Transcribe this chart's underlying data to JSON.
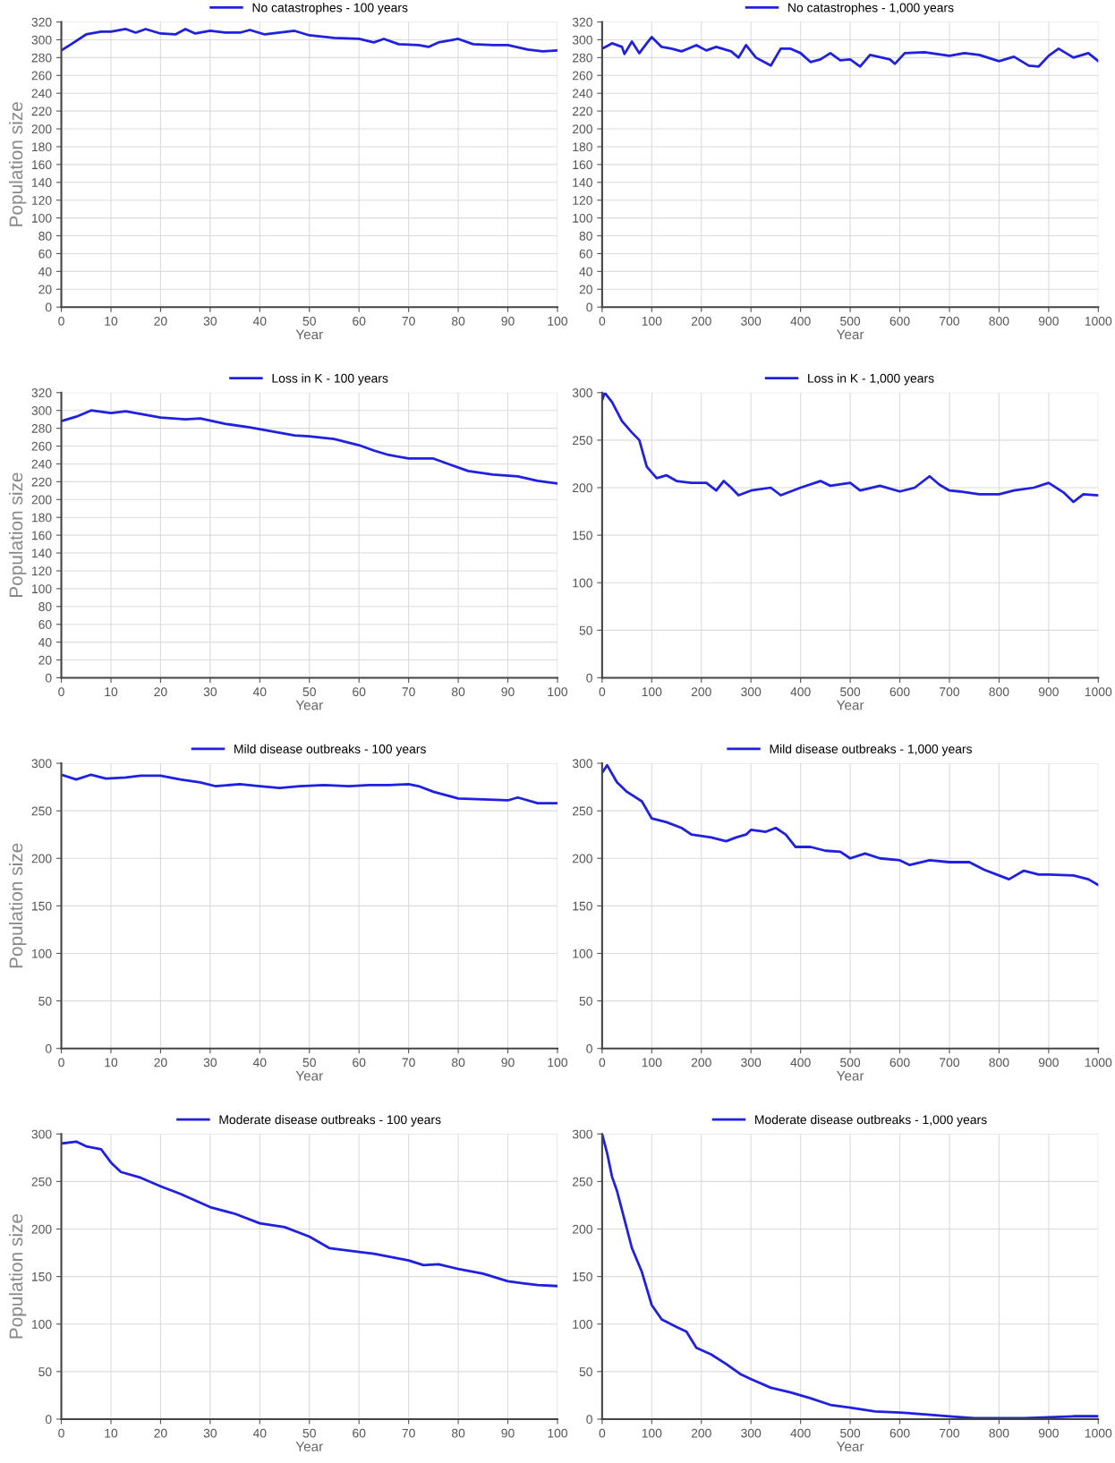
{
  "chart_data": [
    {
      "type": "line",
      "xlabel": "Year",
      "ylabel": "Population size",
      "legend": "top",
      "grid": true,
      "xlim": [
        0,
        100
      ],
      "xticks": [
        0,
        10,
        20,
        30,
        40,
        50,
        60,
        70,
        80,
        90,
        100
      ],
      "ylim": [
        0,
        320
      ],
      "yticks": [
        0,
        20,
        40,
        60,
        80,
        100,
        120,
        140,
        160,
        180,
        200,
        220,
        240,
        260,
        280,
        300,
        320
      ],
      "series": [
        {
          "name": "No catastrophes - 100 years",
          "color": "#2020e0",
          "x": [
            0,
            2,
            5,
            8,
            10,
            13,
            15,
            17,
            20,
            23,
            25,
            27,
            30,
            33,
            36,
            38,
            41,
            44,
            47,
            50,
            55,
            60,
            63,
            65,
            68,
            72,
            74,
            76,
            80,
            83,
            87,
            90,
            94,
            97,
            100
          ],
          "values": [
            288,
            295,
            306,
            309,
            309,
            312,
            308,
            312,
            307,
            306,
            312,
            307,
            310,
            308,
            308,
            311,
            306,
            308,
            310,
            305,
            302,
            301,
            297,
            301,
            295,
            294,
            292,
            297,
            301,
            295,
            294,
            294,
            289,
            287,
            288
          ]
        }
      ]
    },
    {
      "type": "line",
      "xlabel": "Year",
      "legend": "top",
      "grid": true,
      "xlim": [
        0,
        1000
      ],
      "xticks": [
        0,
        100,
        200,
        300,
        400,
        500,
        600,
        700,
        800,
        900,
        1000
      ],
      "ylim": [
        0,
        320
      ],
      "yticks": [
        0,
        20,
        40,
        60,
        80,
        100,
        120,
        140,
        160,
        180,
        200,
        220,
        240,
        260,
        280,
        300,
        320
      ],
      "series": [
        {
          "name": "No catastrophes - 1,000 years",
          "color": "#2020e0",
          "x": [
            0,
            20,
            40,
            45,
            60,
            75,
            90,
            100,
            120,
            140,
            160,
            190,
            210,
            230,
            260,
            275,
            290,
            310,
            340,
            360,
            380,
            400,
            420,
            440,
            460,
            480,
            500,
            520,
            540,
            580,
            590,
            610,
            650,
            700,
            730,
            760,
            800,
            830,
            860,
            880,
            900,
            920,
            950,
            980,
            1000
          ],
          "values": [
            290,
            296,
            292,
            284,
            298,
            285,
            296,
            303,
            292,
            290,
            287,
            294,
            288,
            292,
            287,
            280,
            294,
            280,
            271,
            290,
            290,
            285,
            275,
            278,
            285,
            277,
            278,
            270,
            283,
            278,
            273,
            285,
            286,
            282,
            285,
            283,
            276,
            281,
            271,
            270,
            282,
            290,
            280,
            285,
            276
          ]
        }
      ]
    },
    {
      "type": "line",
      "xlabel": "Year",
      "ylabel": "Population size",
      "legend": "top",
      "grid": true,
      "xlim": [
        0,
        100
      ],
      "xticks": [
        0,
        10,
        20,
        30,
        40,
        50,
        60,
        70,
        80,
        90,
        100
      ],
      "ylim": [
        0,
        320
      ],
      "yticks": [
        0,
        20,
        40,
        60,
        80,
        100,
        120,
        140,
        160,
        180,
        200,
        220,
        240,
        260,
        280,
        300,
        320
      ],
      "series": [
        {
          "name": "Loss in K - 100 years",
          "color": "#2020e0",
          "x": [
            0,
            3,
            6,
            10,
            13,
            17,
            20,
            25,
            28,
            33,
            38,
            42,
            47,
            50,
            55,
            60,
            63,
            66,
            70,
            75,
            78,
            82,
            87,
            92,
            96,
            100
          ],
          "values": [
            288,
            293,
            300,
            297,
            299,
            295,
            292,
            290,
            291,
            285,
            281,
            277,
            272,
            271,
            268,
            261,
            255,
            250,
            246,
            246,
            240,
            232,
            228,
            226,
            221,
            218
          ]
        }
      ]
    },
    {
      "type": "line",
      "xlabel": "Year",
      "legend": "top",
      "grid": true,
      "xlim": [
        0,
        1000
      ],
      "xticks": [
        0,
        100,
        200,
        300,
        400,
        500,
        600,
        700,
        800,
        900,
        1000
      ],
      "ylim": [
        0,
        300
      ],
      "yticks": [
        0,
        50,
        100,
        150,
        200,
        250,
        300
      ],
      "series": [
        {
          "name": "Loss in K - 1,000 years",
          "color": "#2020e0",
          "x": [
            0,
            5,
            20,
            40,
            60,
            75,
            90,
            110,
            130,
            150,
            180,
            210,
            230,
            245,
            260,
            275,
            300,
            340,
            360,
            400,
            440,
            460,
            500,
            520,
            560,
            600,
            630,
            660,
            680,
            700,
            720,
            760,
            800,
            830,
            870,
            900,
            930,
            950,
            970,
            1000
          ],
          "values": [
            292,
            300,
            290,
            270,
            258,
            250,
            222,
            210,
            213,
            207,
            205,
            205,
            197,
            207,
            200,
            192,
            197,
            200,
            192,
            200,
            207,
            202,
            205,
            197,
            202,
            196,
            200,
            212,
            203,
            197,
            196,
            193,
            193,
            197,
            200,
            205,
            195,
            185,
            193,
            192
          ]
        }
      ]
    },
    {
      "type": "line",
      "xlabel": "Year",
      "ylabel": "Population size",
      "legend": "top",
      "grid": true,
      "xlim": [
        0,
        100
      ],
      "xticks": [
        0,
        10,
        20,
        30,
        40,
        50,
        60,
        70,
        80,
        90,
        100
      ],
      "ylim": [
        0,
        300
      ],
      "yticks": [
        0,
        50,
        100,
        150,
        200,
        250,
        300
      ],
      "series": [
        {
          "name": "Mild disease outbreaks - 100 years",
          "color": "#2020e0",
          "x": [
            0,
            3,
            6,
            9,
            13,
            16,
            20,
            24,
            28,
            31,
            36,
            40,
            44,
            48,
            53,
            58,
            62,
            66,
            70,
            72,
            75,
            80,
            85,
            90,
            92,
            96,
            100
          ],
          "values": [
            288,
            283,
            288,
            284,
            285,
            287,
            287,
            283,
            280,
            276,
            278,
            276,
            274,
            276,
            277,
            276,
            277,
            277,
            278,
            276,
            270,
            263,
            262,
            261,
            264,
            258,
            258
          ]
        }
      ]
    },
    {
      "type": "line",
      "xlabel": "Year",
      "legend": "top",
      "grid": true,
      "xlim": [
        0,
        1000
      ],
      "xticks": [
        0,
        100,
        200,
        300,
        400,
        500,
        600,
        700,
        800,
        900,
        1000
      ],
      "ylim": [
        0,
        300
      ],
      "yticks": [
        0,
        50,
        100,
        150,
        200,
        250,
        300
      ],
      "series": [
        {
          "name": "Mild disease outbreaks - 1,000 years",
          "color": "#2020e0",
          "x": [
            0,
            10,
            30,
            50,
            80,
            100,
            130,
            160,
            180,
            220,
            250,
            270,
            290,
            300,
            330,
            350,
            370,
            390,
            420,
            450,
            480,
            500,
            530,
            560,
            600,
            620,
            660,
            700,
            740,
            770,
            800,
            820,
            850,
            880,
            900,
            950,
            980,
            1000
          ],
          "values": [
            290,
            298,
            280,
            270,
            260,
            242,
            238,
            232,
            225,
            222,
            218,
            222,
            225,
            230,
            228,
            232,
            225,
            212,
            212,
            208,
            207,
            200,
            205,
            200,
            198,
            193,
            198,
            196,
            196,
            188,
            182,
            178,
            187,
            183,
            183,
            182,
            178,
            172
          ]
        }
      ]
    },
    {
      "type": "line",
      "xlabel": "Year",
      "ylabel": "Population size",
      "legend": "top",
      "grid": true,
      "xlim": [
        0,
        100
      ],
      "xticks": [
        0,
        10,
        20,
        30,
        40,
        50,
        60,
        70,
        80,
        90,
        100
      ],
      "ylim": [
        0,
        300
      ],
      "yticks": [
        0,
        50,
        100,
        150,
        200,
        250,
        300
      ],
      "series": [
        {
          "name": "Moderate disease outbreaks - 100 years",
          "color": "#2020e0",
          "x": [
            0,
            3,
            5,
            8,
            10,
            12,
            16,
            20,
            24,
            30,
            35,
            40,
            45,
            50,
            54,
            60,
            63,
            70,
            73,
            76,
            80,
            85,
            90,
            93,
            96,
            100
          ],
          "values": [
            290,
            292,
            287,
            284,
            270,
            260,
            254,
            245,
            237,
            223,
            216,
            206,
            202,
            192,
            180,
            176,
            174,
            167,
            162,
            163,
            158,
            153,
            145,
            143,
            141,
            140
          ]
        }
      ]
    },
    {
      "type": "line",
      "xlabel": "Year",
      "legend": "top",
      "grid": true,
      "xlim": [
        0,
        1000
      ],
      "xticks": [
        0,
        100,
        200,
        300,
        400,
        500,
        600,
        700,
        800,
        900,
        1000
      ],
      "ylim": [
        0,
        300
      ],
      "yticks": [
        0,
        50,
        100,
        150,
        200,
        250,
        300
      ],
      "series": [
        {
          "name": "Moderate disease outbreaks - 1,000 years",
          "color": "#2020e0",
          "x": [
            0,
            10,
            20,
            30,
            45,
            60,
            80,
            100,
            120,
            150,
            170,
            190,
            220,
            250,
            280,
            300,
            340,
            380,
            420,
            460,
            500,
            550,
            600,
            650,
            700,
            750,
            800,
            850,
            900,
            950,
            1000
          ],
          "values": [
            300,
            280,
            255,
            240,
            210,
            180,
            155,
            120,
            105,
            97,
            92,
            75,
            68,
            58,
            47,
            42,
            33,
            28,
            22,
            15,
            12,
            8,
            7,
            5,
            3,
            1,
            1,
            1,
            2,
            3,
            3
          ]
        }
      ]
    }
  ]
}
